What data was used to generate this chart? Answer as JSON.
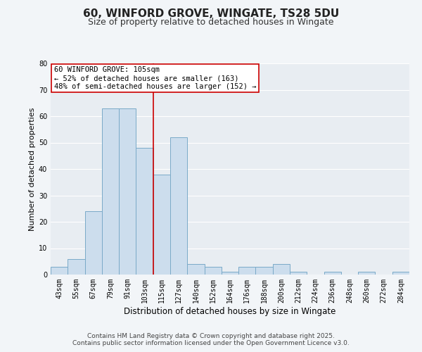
{
  "title": "60, WINFORD GROVE, WINGATE, TS28 5DU",
  "subtitle": "Size of property relative to detached houses in Wingate",
  "xlabel": "Distribution of detached houses by size in Wingate",
  "ylabel": "Number of detached properties",
  "bar_labels": [
    "43sqm",
    "55sqm",
    "67sqm",
    "79sqm",
    "91sqm",
    "103sqm",
    "115sqm",
    "127sqm",
    "140sqm",
    "152sqm",
    "164sqm",
    "176sqm",
    "188sqm",
    "200sqm",
    "212sqm",
    "224sqm",
    "236sqm",
    "248sqm",
    "260sqm",
    "272sqm",
    "284sqm"
  ],
  "bar_values": [
    3,
    6,
    24,
    63,
    63,
    48,
    38,
    52,
    4,
    3,
    1,
    3,
    3,
    4,
    1,
    0,
    1,
    0,
    1,
    0,
    1
  ],
  "bar_color": "#ccdded",
  "bar_edge_color": "#7aaac8",
  "fig_background": "#f2f5f8",
  "ax_background": "#e8edf2",
  "grid_color": "#ffffff",
  "vline_color": "#cc0000",
  "annotation_line1": "60 WINFORD GROVE: 105sqm",
  "annotation_line2": "← 52% of detached houses are smaller (163)",
  "annotation_line3": "48% of semi-detached houses are larger (152) →",
  "annotation_box_color": "#ffffff",
  "annotation_box_edge": "#cc0000",
  "ylim": [
    0,
    80
  ],
  "yticks": [
    0,
    10,
    20,
    30,
    40,
    50,
    60,
    70,
    80
  ],
  "footnote1": "Contains HM Land Registry data © Crown copyright and database right 2025.",
  "footnote2": "Contains public sector information licensed under the Open Government Licence v3.0.",
  "title_fontsize": 11,
  "subtitle_fontsize": 9,
  "xlabel_fontsize": 8.5,
  "ylabel_fontsize": 8,
  "tick_fontsize": 7,
  "annotation_fontsize": 7.5,
  "footnote_fontsize": 6.5
}
